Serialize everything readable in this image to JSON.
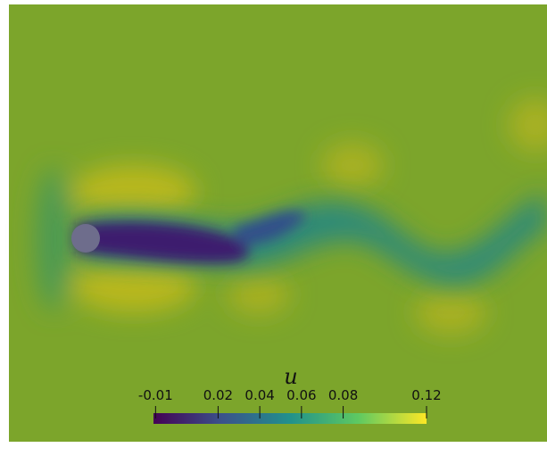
{
  "colorbar": {
    "title": "u",
    "clim": [
      -0.011,
      0.12
    ],
    "ticks": [
      -0.01,
      0.02,
      0.04,
      0.06,
      0.08,
      0.12
    ]
  }
}
